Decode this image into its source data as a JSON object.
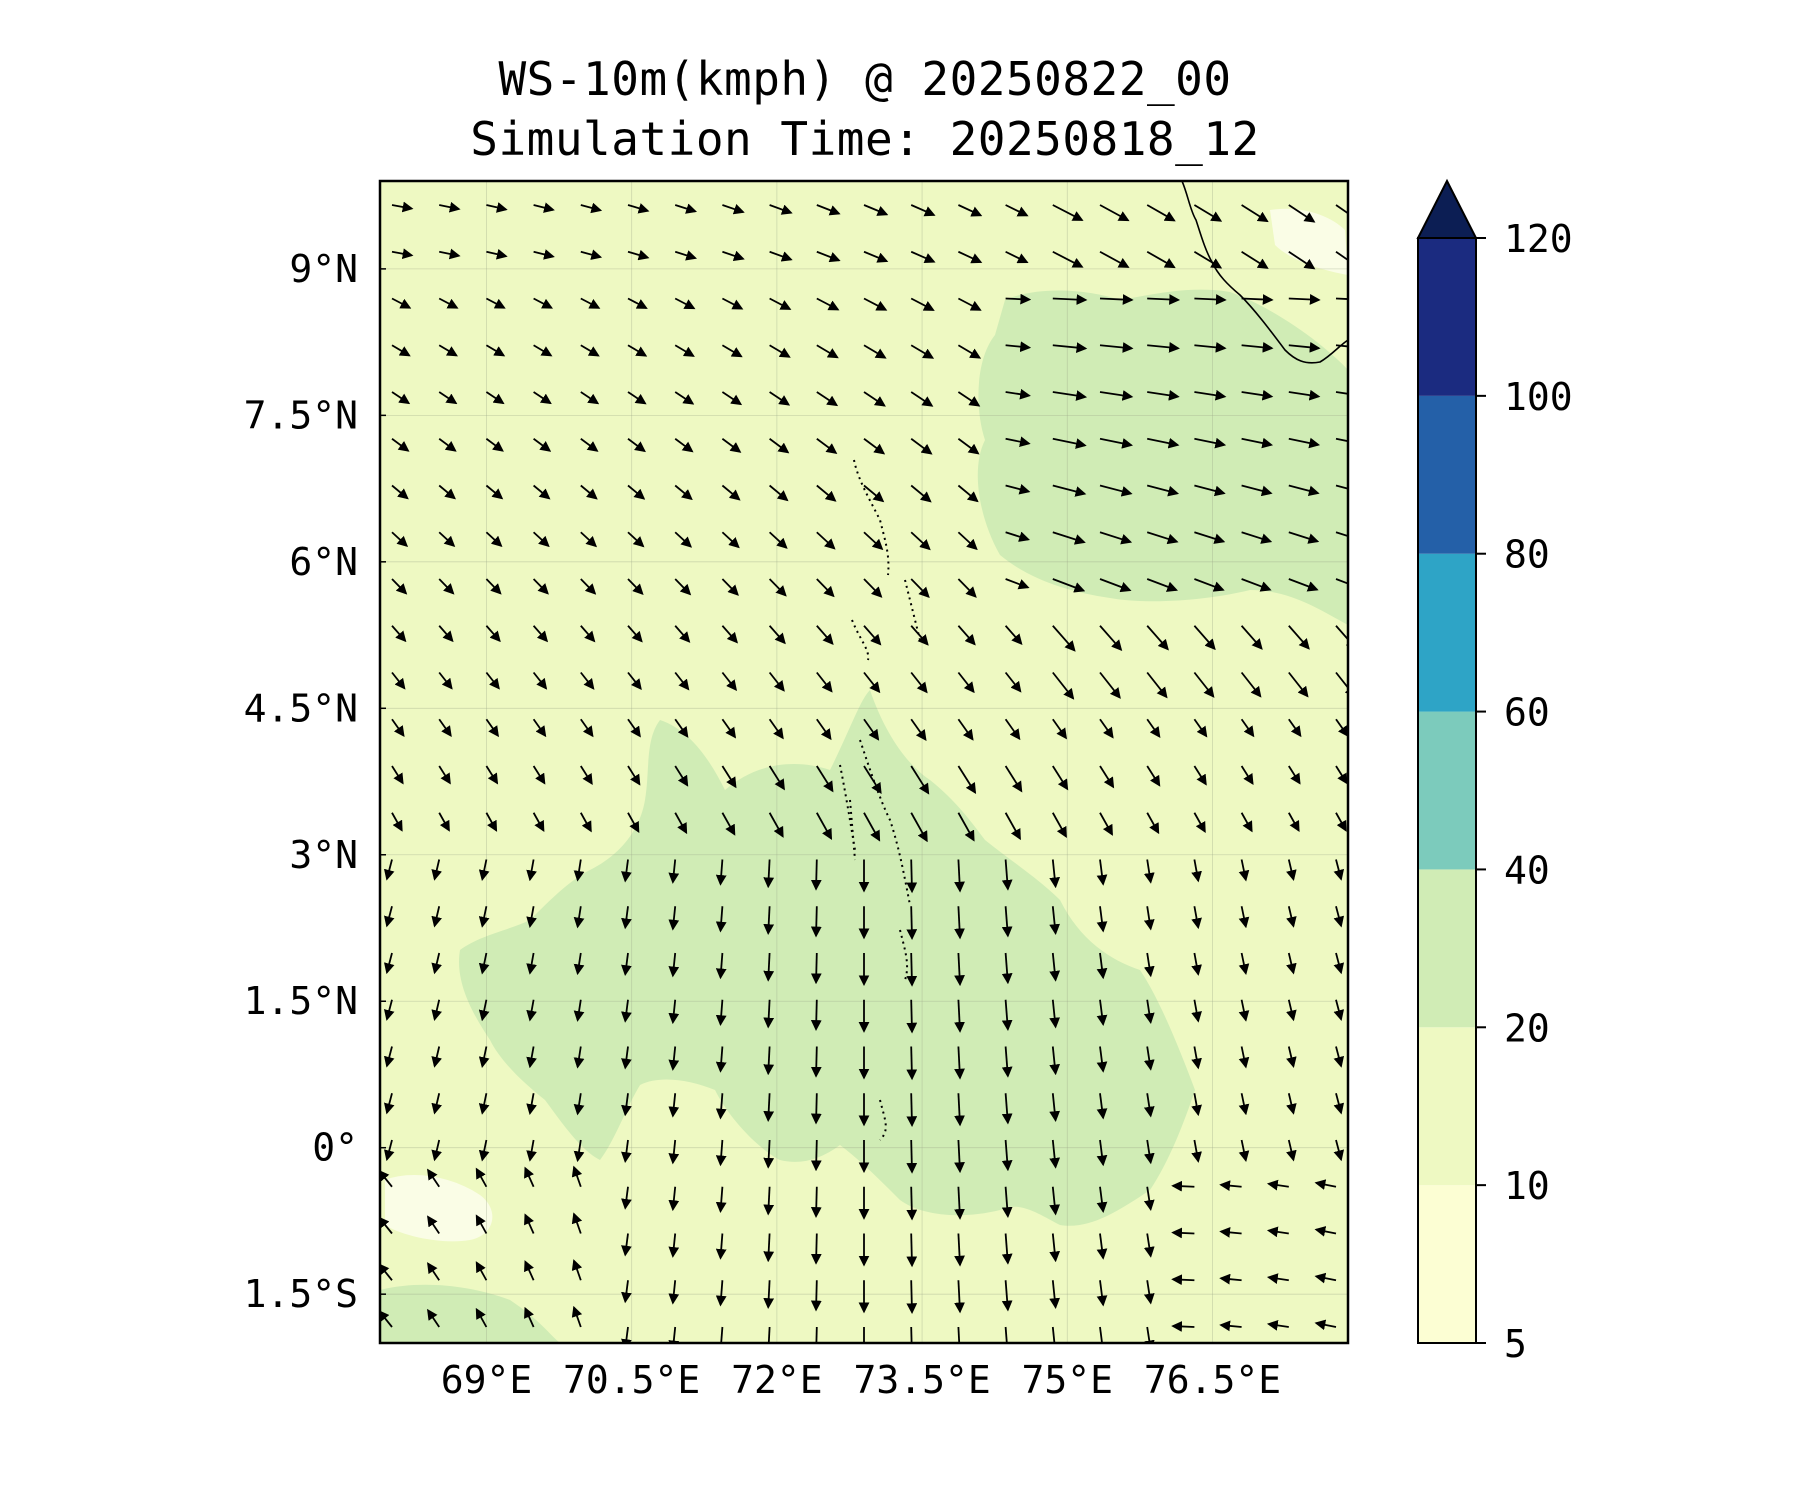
{
  "figure": {
    "title_line1": "WS-10m(kmph) @ 20250822_00",
    "title_line2": "Simulation Time: 20250818_12"
  },
  "map": {
    "lon_range": [
      67.9,
      77.9
    ],
    "lat_range": [
      -2.0,
      9.9
    ],
    "lat_ticks": [
      {
        "value": 9,
        "label": "9°N"
      },
      {
        "value": 7.5,
        "label": "7.5°N"
      },
      {
        "value": 6,
        "label": "6°N"
      },
      {
        "value": 4.5,
        "label": "4.5°N"
      },
      {
        "value": 3,
        "label": "3°N"
      },
      {
        "value": 1.5,
        "label": "1.5°N"
      },
      {
        "value": 0,
        "label": "0°"
      },
      {
        "value": -1.5,
        "label": "1.5°S"
      }
    ],
    "lon_ticks": [
      {
        "value": 69,
        "label": "69°E"
      },
      {
        "value": 70.5,
        "label": "70.5°E"
      },
      {
        "value": 72,
        "label": "72°E"
      },
      {
        "value": 73.5,
        "label": "73.5°E"
      },
      {
        "value": 75,
        "label": "75°E"
      },
      {
        "value": 76.5,
        "label": "76.5°E"
      }
    ],
    "gridlines": true,
    "colors": {
      "background_fill": "#eef9c2",
      "strong_wind_fill": "#d0ecb5",
      "calm_fill": "#fafde6"
    }
  },
  "colorbar": {
    "levels": [
      5,
      10,
      20,
      40,
      60,
      80,
      100,
      120
    ],
    "labels": [
      "5",
      "10",
      "20",
      "40",
      "60",
      "80",
      "100",
      "120"
    ],
    "colors": [
      "#fcfed3",
      "#eef9c2",
      "#d0ecb5",
      "#7ccbbc",
      "#2ea4c6",
      "#2460a8",
      "#1b2b80"
    ],
    "extend_color": "#0c1e54",
    "extend": "max"
  }
}
